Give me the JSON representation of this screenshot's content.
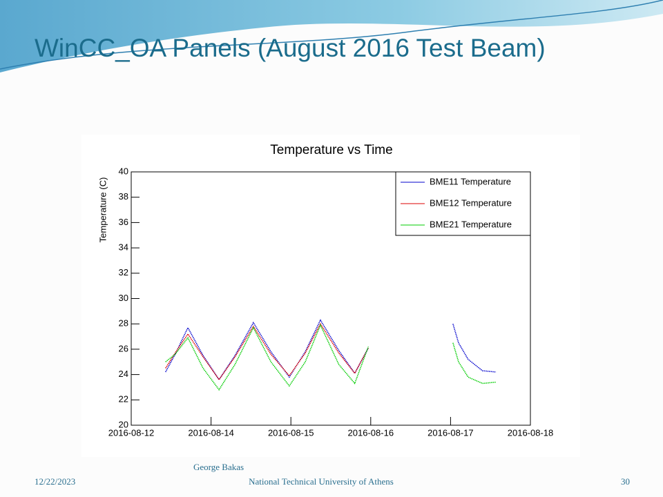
{
  "slide": {
    "title": "WinCC_OA Panels (August 2016 Test Beam)",
    "date": "12/22/2023",
    "author": "George Bakas",
    "institution": "National Technical University of Athens",
    "page": "30"
  },
  "chart_data": {
    "type": "line",
    "title": "Temperature vs Time",
    "ylabel": "Temperature (C)",
    "x": [
      0.43,
      0.55,
      0.71,
      0.9,
      1.1,
      1.3,
      1.53,
      1.75,
      1.98,
      2.18,
      2.37,
      2.6,
      2.8,
      2.97,
      3.5,
      4.03,
      4.1,
      4.22,
      4.4,
      4.57
    ],
    "series": [
      {
        "name": "BME11 Temperature",
        "color": "#0000cc",
        "values": [
          24.2,
          25.6,
          27.7,
          25.5,
          23.6,
          25.5,
          28.1,
          25.8,
          23.8,
          25.8,
          28.3,
          25.9,
          24.1,
          26.1,
          null,
          28.0,
          26.5,
          25.2,
          24.3,
          24.2
        ]
      },
      {
        "name": "BME12 Temperature",
        "color": "#dd0000",
        "values": [
          24.5,
          25.7,
          27.2,
          25.4,
          23.6,
          25.4,
          27.8,
          25.6,
          23.9,
          25.7,
          28.0,
          25.7,
          24.1,
          26.1,
          null,
          null,
          null,
          null,
          null,
          null
        ]
      },
      {
        "name": "BME21 Temperature",
        "color": "#00cc00",
        "values": [
          25.0,
          25.6,
          26.9,
          24.5,
          22.8,
          24.8,
          27.7,
          25.0,
          23.1,
          25.0,
          27.9,
          24.8,
          23.3,
          26.2,
          null,
          26.5,
          25.0,
          23.8,
          23.3,
          23.4
        ]
      }
    ],
    "xlim": [
      0,
      5
    ],
    "xticks": [
      {
        "value": 0,
        "label": "2016-08-12"
      },
      {
        "value": 1,
        "label": "2016-08-14"
      },
      {
        "value": 2,
        "label": "2016-08-15"
      },
      {
        "value": 3,
        "label": "2016-08-16"
      },
      {
        "value": 4,
        "label": "2016-08-17"
      },
      {
        "value": 5,
        "label": "2016-08-18"
      }
    ],
    "ylim": [
      20,
      40
    ],
    "yticks": [
      20,
      22,
      24,
      26,
      28,
      30,
      32,
      34,
      36,
      38,
      40
    ],
    "legend": "upper right",
    "grid": false
  }
}
